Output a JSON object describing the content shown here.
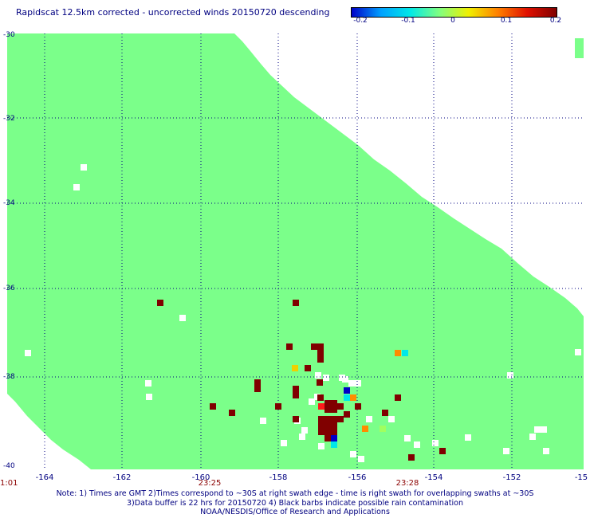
{
  "title": "Rapidscat 12.5km corrected - uncorrected winds 20150720 descending",
  "colorbar": {
    "ticks": [
      "-0.2",
      "-0.1",
      "0",
      "0.1",
      "0.2"
    ],
    "tick_values": [
      -0.2,
      -0.1,
      0,
      0.1,
      0.2
    ],
    "colors": [
      "#0000c8",
      "#00a0ff",
      "#00e8e8",
      "#80ff80",
      "#f0f000",
      "#ff8000",
      "#e01000",
      "#800000"
    ]
  },
  "map": {
    "lat_labels": [
      "-30",
      "-32",
      "-34",
      "-36",
      "-38",
      "-40"
    ],
    "lon_labels": [
      "-164",
      "-162",
      "-160",
      "-158",
      "-156",
      "-154",
      "-152",
      "-15"
    ],
    "lat_range": [
      -40,
      -30
    ],
    "lon_range": [
      -165,
      -150
    ],
    "background_color": "#7bff8a",
    "time_labels": [
      "1:01",
      "23:25",
      "23:28"
    ]
  },
  "notes": {
    "line1": "Note: 1) Times are GMT 2)Times correspond to ~30S at right swath edge - time is right swath for overlapping swaths at ~30S",
    "line2": "3)Data buffer is 22 hrs for 20150720 4) Black barbs indicate possible rain contamination",
    "line3": "NOAA/NESDIS/Office of Research and Applications"
  }
}
